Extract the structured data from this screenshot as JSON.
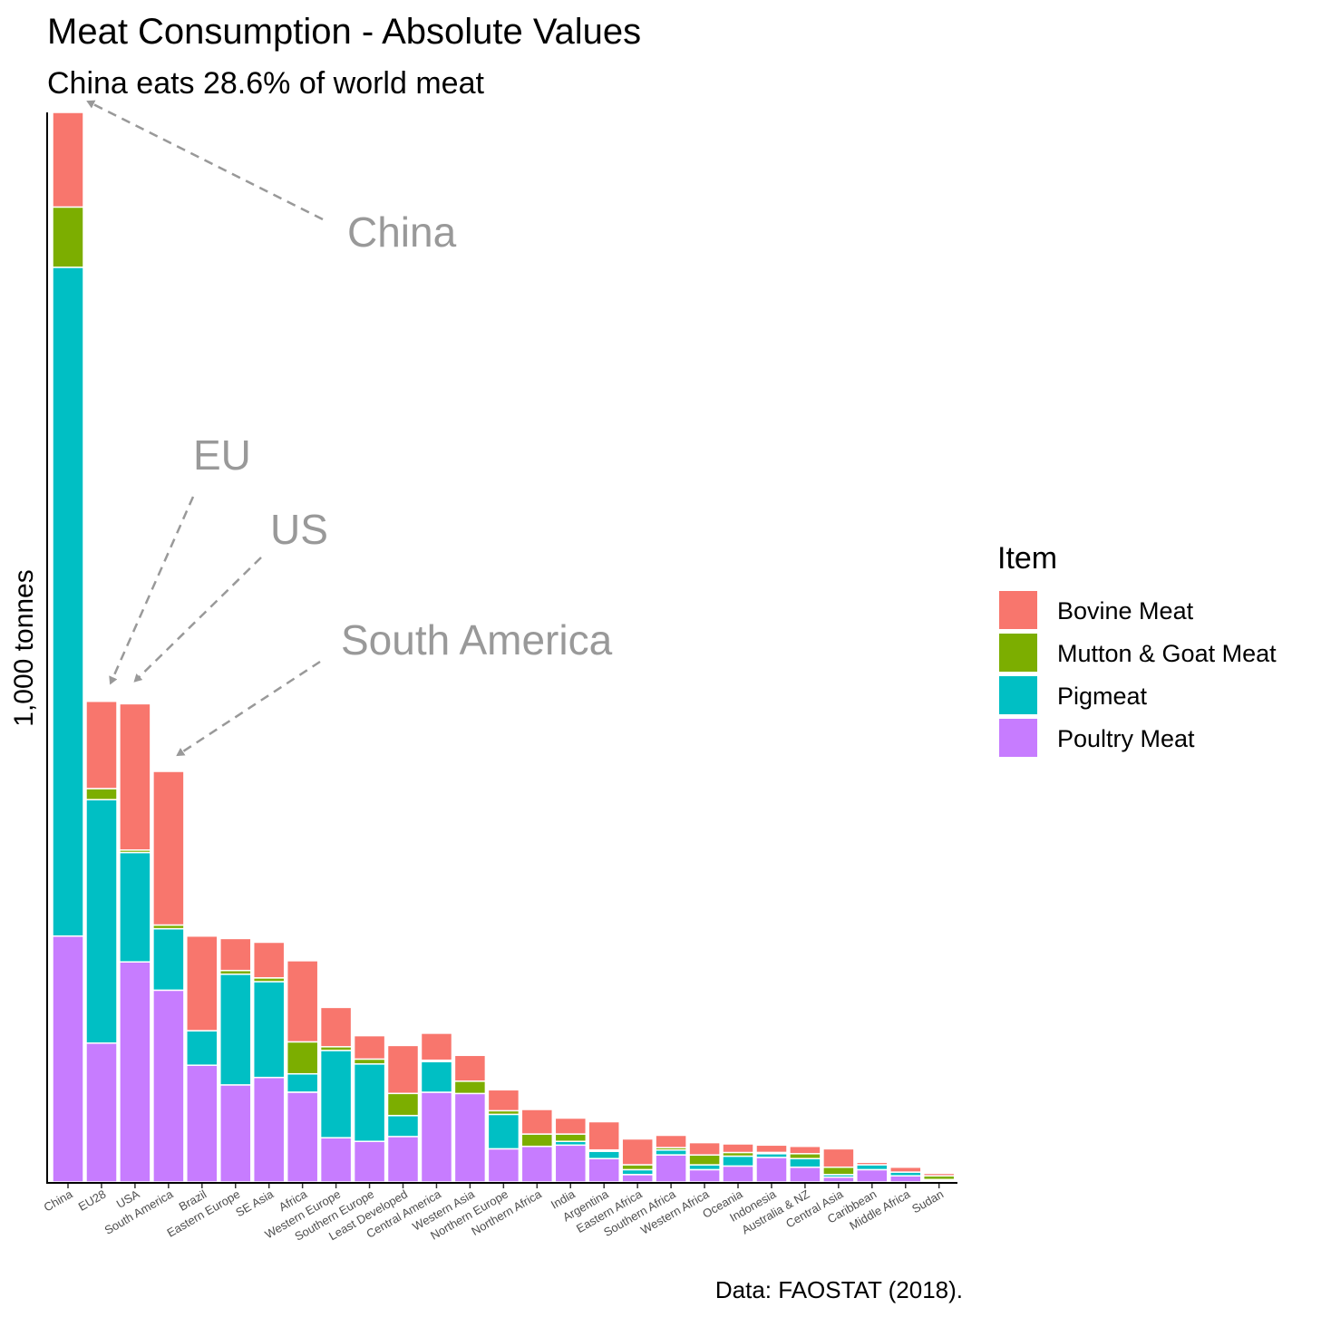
{
  "title": "Meat Consumption - Absolute Values",
  "subtitle": "China eats 28.6% of world meat",
  "caption": "Data: FAOSTAT (2018).",
  "chart_data": {
    "type": "bar",
    "stacked": true,
    "ylabel": "1,000 tonnes",
    "xlabel": "",
    "y_ticks_shown": false,
    "ylim": [
      0,
      87000
    ],
    "categories": [
      "China",
      "EU28",
      "USA",
      "South America",
      "Brazil",
      "Eastern Europe",
      "SE Asia",
      "Africa",
      "Western Europe",
      "Southern Europe",
      "Least Developed",
      "Central America",
      "Western Asia",
      "Northern Europe",
      "Northern Africa",
      "India",
      "Argentina",
      "Eastern Africa",
      "Southern Africa",
      "Western Africa",
      "Oceania",
      "Indonesia",
      "Australia & NZ",
      "Central Asia",
      "Caribbean",
      "Middle Africa",
      "Sudan"
    ],
    "series": [
      {
        "name": "Poultry Meat",
        "color": "#C77CFF",
        "values": [
          20000,
          11300,
          17900,
          15600,
          9500,
          7900,
          8500,
          7300,
          3600,
          3300,
          3700,
          7300,
          7200,
          2700,
          2900,
          3000,
          1900,
          600,
          2200,
          1000,
          1300,
          2000,
          1200,
          400,
          1000,
          500,
          100
        ]
      },
      {
        "name": "Pigmeat",
        "color": "#00BFC4",
        "values": [
          54400,
          19800,
          8900,
          5000,
          2800,
          9000,
          7800,
          1500,
          7100,
          6300,
          1700,
          2500,
          0,
          2800,
          0,
          300,
          600,
          400,
          400,
          400,
          800,
          300,
          700,
          200,
          400,
          300,
          100
        ]
      },
      {
        "name": "Mutton & Goat Meat",
        "color": "#7CAE00",
        "values": [
          4900,
          900,
          200,
          300,
          0,
          300,
          300,
          2600,
          300,
          400,
          1800,
          100,
          1000,
          300,
          1000,
          600,
          100,
          400,
          200,
          800,
          300,
          100,
          400,
          600,
          0,
          0,
          300
        ]
      },
      {
        "name": "Bovine Meat",
        "color": "#F8766D",
        "values": [
          7700,
          7100,
          11900,
          12500,
          7700,
          2600,
          2900,
          6600,
          3200,
          1900,
          3900,
          2200,
          2100,
          1700,
          2000,
          1300,
          2300,
          2100,
          1000,
          1000,
          700,
          600,
          600,
          1500,
          200,
          400,
          200
        ]
      }
    ],
    "annotations": [
      {
        "label": "China",
        "points_to": "China"
      },
      {
        "label": "EU",
        "points_to": "EU28"
      },
      {
        "label": "US",
        "points_to": "USA"
      },
      {
        "label": "South America",
        "points_to": "South America"
      }
    ],
    "legend": {
      "title": "Item",
      "position": "right",
      "items": [
        "Bovine Meat",
        "Mutton & Goat Meat",
        "Pigmeat",
        "Poultry Meat"
      ]
    }
  }
}
